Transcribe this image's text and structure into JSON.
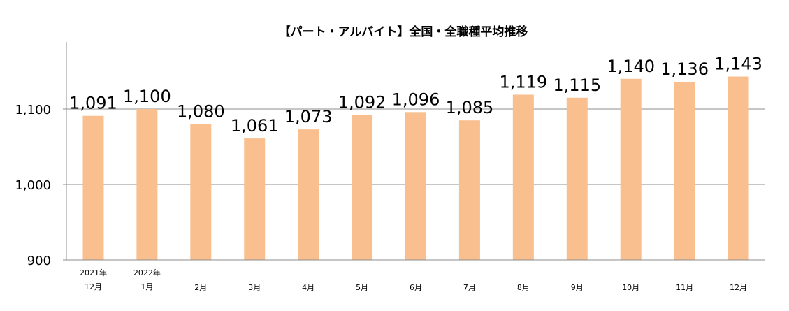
{
  "chart_data": {
    "type": "bar",
    "title": "【パート・アルバイト】全国・全職種平均推移",
    "categories": [
      [
        "2021年",
        "12月"
      ],
      [
        "2022年",
        "1月"
      ],
      [
        "2月"
      ],
      [
        "3月"
      ],
      [
        "4月"
      ],
      [
        "5月"
      ],
      [
        "6月"
      ],
      [
        "7月"
      ],
      [
        "8月"
      ],
      [
        "9月"
      ],
      [
        "10月"
      ],
      [
        "11月"
      ],
      [
        "12月"
      ]
    ],
    "values": [
      1091,
      1100,
      1080,
      1061,
      1073,
      1092,
      1096,
      1085,
      1119,
      1115,
      1140,
      1136,
      1143
    ],
    "value_labels": [
      "1,091",
      "1,100",
      "1,080",
      "1,061",
      "1,073",
      "1,092",
      "1,096",
      "1,085",
      "1,119",
      "1,115",
      "1,140",
      "1,136",
      "1,143"
    ],
    "yticks": [
      900,
      1000,
      1100
    ],
    "ytick_labels": [
      "900",
      "1,000",
      "1,100"
    ],
    "ylim": [
      900,
      1180
    ],
    "grid": true,
    "xlabel": "",
    "ylabel": "",
    "colors": {
      "bar": "#F9BF8F",
      "grid": "#8c8c8c",
      "axis": "#8c8c8c"
    }
  }
}
